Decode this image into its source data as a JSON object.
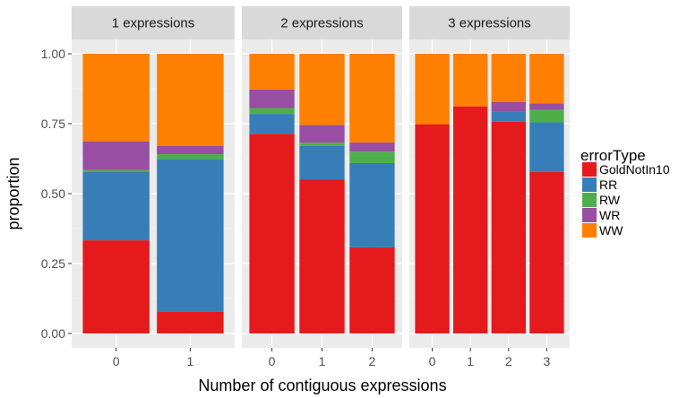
{
  "chart_data": {
    "type": "bar",
    "stacked": true,
    "xlabel": "Number of contiguous expressions",
    "ylabel": "proportion",
    "ylim": [
      0,
      1
    ],
    "yticks": [
      "0.00",
      "0.25",
      "0.50",
      "0.75",
      "1.00"
    ],
    "grid": true,
    "legend": {
      "title": "errorType",
      "placement": "right",
      "entries": [
        {
          "name": "GoldNotIn10",
          "color": "#E41A1C"
        },
        {
          "name": "RR",
          "color": "#377EB8"
        },
        {
          "name": "RW",
          "color": "#4DAF4A"
        },
        {
          "name": "WR",
          "color": "#984EA3"
        },
        {
          "name": "WW",
          "color": "#FF7F00"
        }
      ]
    },
    "facets": [
      {
        "label": "1 expressions",
        "categories": [
          "0",
          "1"
        ],
        "series": [
          {
            "name": "GoldNotIn10",
            "values": [
              0.333,
              0.077
            ]
          },
          {
            "name": "RR",
            "values": [
              0.244,
              0.547
            ]
          },
          {
            "name": "RW",
            "values": [
              0.007,
              0.017
            ]
          },
          {
            "name": "WR",
            "values": [
              0.103,
              0.03
            ]
          },
          {
            "name": "WW",
            "values": [
              0.313,
              0.329
            ]
          }
        ]
      },
      {
        "label": "2 expressions",
        "categories": [
          "0",
          "1",
          "2"
        ],
        "series": [
          {
            "name": "GoldNotIn10",
            "values": [
              0.714,
              0.551,
              0.308
            ]
          },
          {
            "name": "RR",
            "values": [
              0.071,
              0.119,
              0.301
            ]
          },
          {
            "name": "RW",
            "values": [
              0.021,
              0.012,
              0.041
            ]
          },
          {
            "name": "WR",
            "values": [
              0.066,
              0.063,
              0.033
            ]
          },
          {
            "name": "WW",
            "values": [
              0.128,
              0.255,
              0.317
            ]
          }
        ]
      },
      {
        "label": "3 expressions",
        "categories": [
          "0",
          "1",
          "2",
          "3"
        ],
        "series": [
          {
            "name": "GoldNotIn10",
            "values": [
              0.748,
              0.812,
              0.757,
              0.578
            ]
          },
          {
            "name": "RR",
            "values": [
              0.0,
              0.0,
              0.035,
              0.177
            ]
          },
          {
            "name": "RW",
            "values": [
              0.0,
              0.0,
              0.0,
              0.045
            ]
          },
          {
            "name": "WR",
            "values": [
              0.0,
              0.0,
              0.036,
              0.022
            ]
          },
          {
            "name": "WW",
            "values": [
              0.252,
              0.188,
              0.172,
              0.178
            ]
          }
        ]
      }
    ]
  }
}
